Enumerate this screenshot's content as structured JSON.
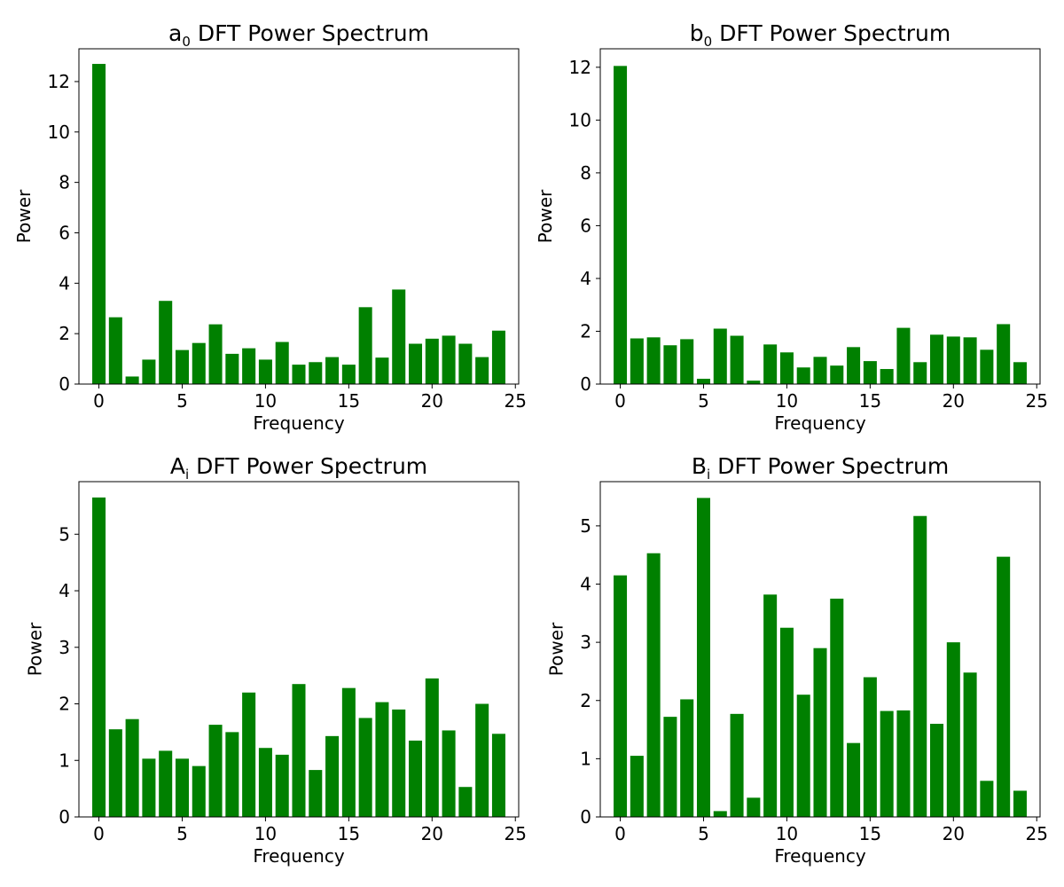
{
  "colors": {
    "bar": "#008000",
    "axis": "#000000",
    "background": "#ffffff"
  },
  "chart_data": [
    {
      "type": "bar",
      "title": "DFT Power Spectrum",
      "title_symbol": "a",
      "title_subscript": "0",
      "xlabel": "Frequency",
      "ylabel": "Power",
      "xlim": [
        -1.2,
        25.2
      ],
      "ylim": [
        0,
        13.3
      ],
      "xticks": [
        0,
        5,
        10,
        15,
        20,
        25
      ],
      "yticks": [
        0,
        2,
        4,
        6,
        8,
        10,
        12
      ],
      "grid": false,
      "x": [
        0,
        1,
        2,
        3,
        4,
        5,
        6,
        7,
        8,
        9,
        10,
        11,
        12,
        13,
        14,
        15,
        16,
        17,
        18,
        19,
        20,
        21,
        22,
        23,
        24
      ],
      "values": [
        12.7,
        2.65,
        0.3,
        0.97,
        3.3,
        1.35,
        1.63,
        2.37,
        1.2,
        1.42,
        0.97,
        1.67,
        0.77,
        0.87,
        1.07,
        0.77,
        3.05,
        1.05,
        3.75,
        1.6,
        1.8,
        1.92,
        1.6,
        1.07,
        2.12
      ]
    },
    {
      "type": "bar",
      "title": "DFT Power Spectrum",
      "title_symbol": "b",
      "title_subscript": "0",
      "xlabel": "Frequency",
      "ylabel": "Power",
      "xlim": [
        -1.2,
        25.2
      ],
      "ylim": [
        0,
        12.7
      ],
      "xticks": [
        0,
        5,
        10,
        15,
        20,
        25
      ],
      "yticks": [
        0,
        2,
        4,
        6,
        8,
        10,
        12
      ],
      "grid": false,
      "x": [
        0,
        1,
        2,
        3,
        4,
        5,
        6,
        7,
        8,
        9,
        10,
        11,
        12,
        13,
        14,
        15,
        16,
        17,
        18,
        19,
        20,
        21,
        22,
        23,
        24
      ],
      "values": [
        12.05,
        1.73,
        1.77,
        1.47,
        1.7,
        0.2,
        2.1,
        1.83,
        0.13,
        1.5,
        1.2,
        0.63,
        1.03,
        0.7,
        1.4,
        0.87,
        0.57,
        2.13,
        0.83,
        1.87,
        1.8,
        1.77,
        1.3,
        2.27,
        0.83
      ]
    },
    {
      "type": "bar",
      "title": "DFT Power Spectrum",
      "title_symbol": "A",
      "title_subscript": "i",
      "xlabel": "Frequency",
      "ylabel": "Power",
      "xlim": [
        -1.2,
        25.2
      ],
      "ylim": [
        0,
        5.93
      ],
      "xticks": [
        0,
        5,
        10,
        15,
        20,
        25
      ],
      "yticks": [
        0,
        1,
        2,
        3,
        4,
        5
      ],
      "grid": false,
      "x": [
        0,
        1,
        2,
        3,
        4,
        5,
        6,
        7,
        8,
        9,
        10,
        11,
        12,
        13,
        14,
        15,
        16,
        17,
        18,
        19,
        20,
        21,
        22,
        23,
        24
      ],
      "values": [
        5.65,
        1.55,
        1.73,
        1.03,
        1.17,
        1.03,
        0.9,
        1.63,
        1.5,
        2.2,
        1.22,
        1.1,
        2.35,
        0.83,
        1.43,
        2.28,
        1.75,
        2.03,
        1.9,
        1.35,
        2.45,
        1.53,
        0.53,
        2.0,
        1.47
      ]
    },
    {
      "type": "bar",
      "title": "DFT Power Spectrum",
      "title_symbol": "B",
      "title_subscript": "i",
      "xlabel": "Frequency",
      "ylabel": "Power",
      "xlim": [
        -1.2,
        25.2
      ],
      "ylim": [
        0,
        5.76
      ],
      "xticks": [
        0,
        5,
        10,
        15,
        20,
        25
      ],
      "yticks": [
        0,
        1,
        2,
        3,
        4,
        5
      ],
      "grid": false,
      "x": [
        0,
        1,
        2,
        3,
        4,
        5,
        6,
        7,
        8,
        9,
        10,
        11,
        12,
        13,
        14,
        15,
        16,
        17,
        18,
        19,
        20,
        21,
        22,
        23,
        24
      ],
      "values": [
        4.15,
        1.05,
        4.53,
        1.72,
        2.02,
        5.48,
        0.1,
        1.77,
        0.33,
        3.82,
        3.25,
        2.1,
        2.9,
        3.75,
        1.27,
        2.4,
        1.82,
        1.83,
        5.17,
        1.6,
        3.0,
        2.48,
        0.62,
        4.47,
        0.45
      ]
    }
  ]
}
